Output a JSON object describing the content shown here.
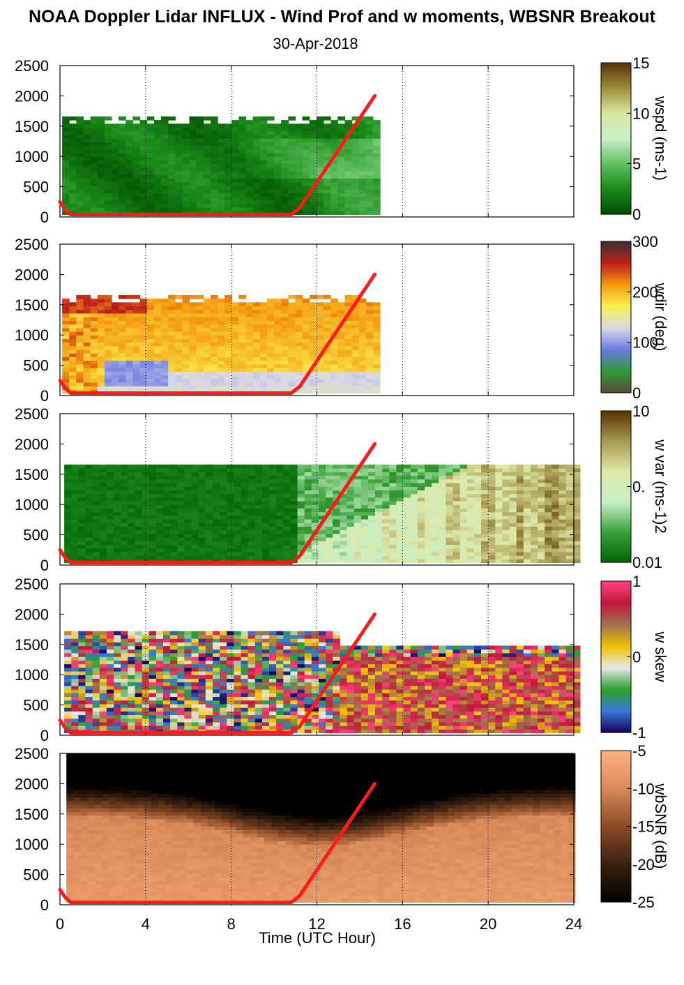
{
  "title": "NOAA Doppler Lidar INFLUX - Wind Prof and w moments, WBSNR Breakout",
  "subtitle": "30-Apr-2018",
  "chart_data": {
    "type": "heatmap",
    "xlabel": "Time (UTC Hour)",
    "xlim": [
      0,
      24
    ],
    "x_ticks": [
      "0",
      "4",
      "8",
      "12",
      "16",
      "20",
      "24"
    ],
    "ylim": [
      0,
      2500
    ],
    "y_ticks": [
      "0",
      "500",
      "1000",
      "1500",
      "2000",
      "2500"
    ],
    "grid": "vertical dotted lines at 4-hour intervals",
    "overlay_line": {
      "color": "#ff1a1a",
      "x": [
        0,
        0.25,
        0.5,
        10.8,
        11.2,
        14.7
      ],
      "y": [
        250,
        120,
        40,
        40,
        150,
        2000
      ]
    },
    "panels": [
      {
        "name": "wspd",
        "colorbar_label": "wspd (ms-1)",
        "colorbar_ticks": [
          "15",
          "10",
          "5",
          "0"
        ],
        "data_extent_hours": [
          0.1,
          14.7
        ],
        "top_height_m": 1650,
        "colormap": [
          "#004d00",
          "#1a8a1a",
          "#5fbf5f",
          "#c8f0c8",
          "#d8e8a0",
          "#9e8f3a",
          "#5a3208"
        ]
      },
      {
        "name": "wdir",
        "colorbar_label": "wdir (deg)",
        "colorbar_ticks": [
          "300",
          "200",
          "100",
          "0"
        ],
        "data_extent_hours": [
          0.1,
          14.7
        ],
        "top_height_m": 1650,
        "colormap": [
          "#5a4a3a",
          "#2f9a3a",
          "#6a7ae0",
          "#d8d8e8",
          "#f7f052",
          "#f59c10",
          "#c0201a",
          "#3a3030"
        ]
      },
      {
        "name": "w var",
        "colorbar_label": "w var (ms-1)2",
        "colorbar_ticks": [
          "10",
          "0.",
          "0.01"
        ],
        "data_extent_hours": [
          0.2,
          24
        ],
        "top_height_m": 1650,
        "colormap": [
          "#006400",
          "#3aa03a",
          "#c8f0c8",
          "#dde8a8",
          "#a89a50",
          "#5a3208"
        ]
      },
      {
        "name": "w skew",
        "colorbar_label": "w skew",
        "colorbar_ticks": [
          "1",
          "0",
          "-1"
        ],
        "data_extent_hours": [
          0.2,
          24
        ],
        "top_height_m": 1700,
        "colormap": [
          "#15005a",
          "#3a78d8",
          "#2aa02a",
          "#e8e8e8",
          "#f0c000",
          "#a07050",
          "#c01a3a",
          "#ff4080"
        ]
      },
      {
        "name": "wbSNR",
        "colorbar_label": "wbSNR (dB)",
        "colorbar_ticks": [
          "-5",
          "-10",
          "-15",
          "-20",
          "-25"
        ],
        "data_extent_hours": [
          0.3,
          24
        ],
        "top_height_m": 2500,
        "colormap": [
          "#000000",
          "#3a2010",
          "#8a4a25",
          "#d88a5a",
          "#ffb080"
        ]
      }
    ]
  }
}
